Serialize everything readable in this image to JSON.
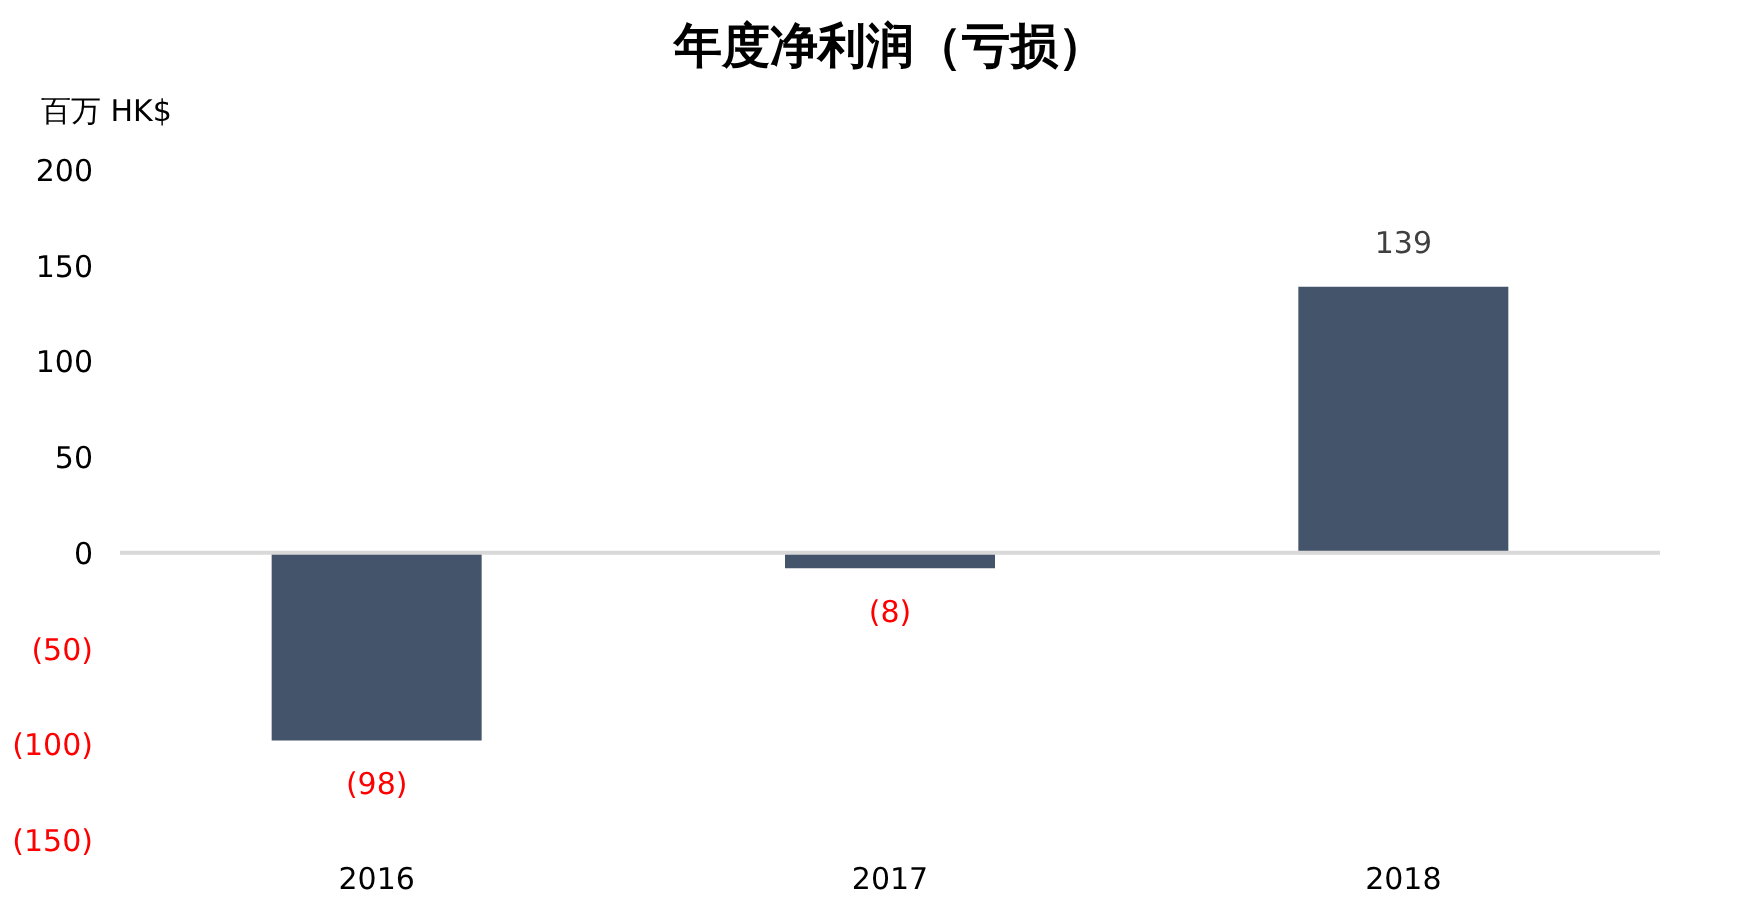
{
  "chart_data": {
    "type": "bar",
    "title": "年度净利润（亏损）",
    "ylabel": "百万 HK$",
    "categories": [
      "2016",
      "2017",
      "2018"
    ],
    "values": [
      -98,
      -8,
      139
    ],
    "value_labels": [
      "(98)",
      "(8)",
      "139"
    ],
    "color": "#44546a",
    "ylim": [
      -150,
      200
    ],
    "yticks": [
      {
        "value": -150,
        "label": "(150)"
      },
      {
        "value": -100,
        "label": "(100)"
      },
      {
        "value": -50,
        "label": "(50)"
      },
      0,
      50,
      100,
      150,
      200
    ],
    "ref_lines": [
      {
        "axis": "y",
        "value": 0,
        "color": "#d9d9d9"
      }
    ],
    "grid": false
  }
}
